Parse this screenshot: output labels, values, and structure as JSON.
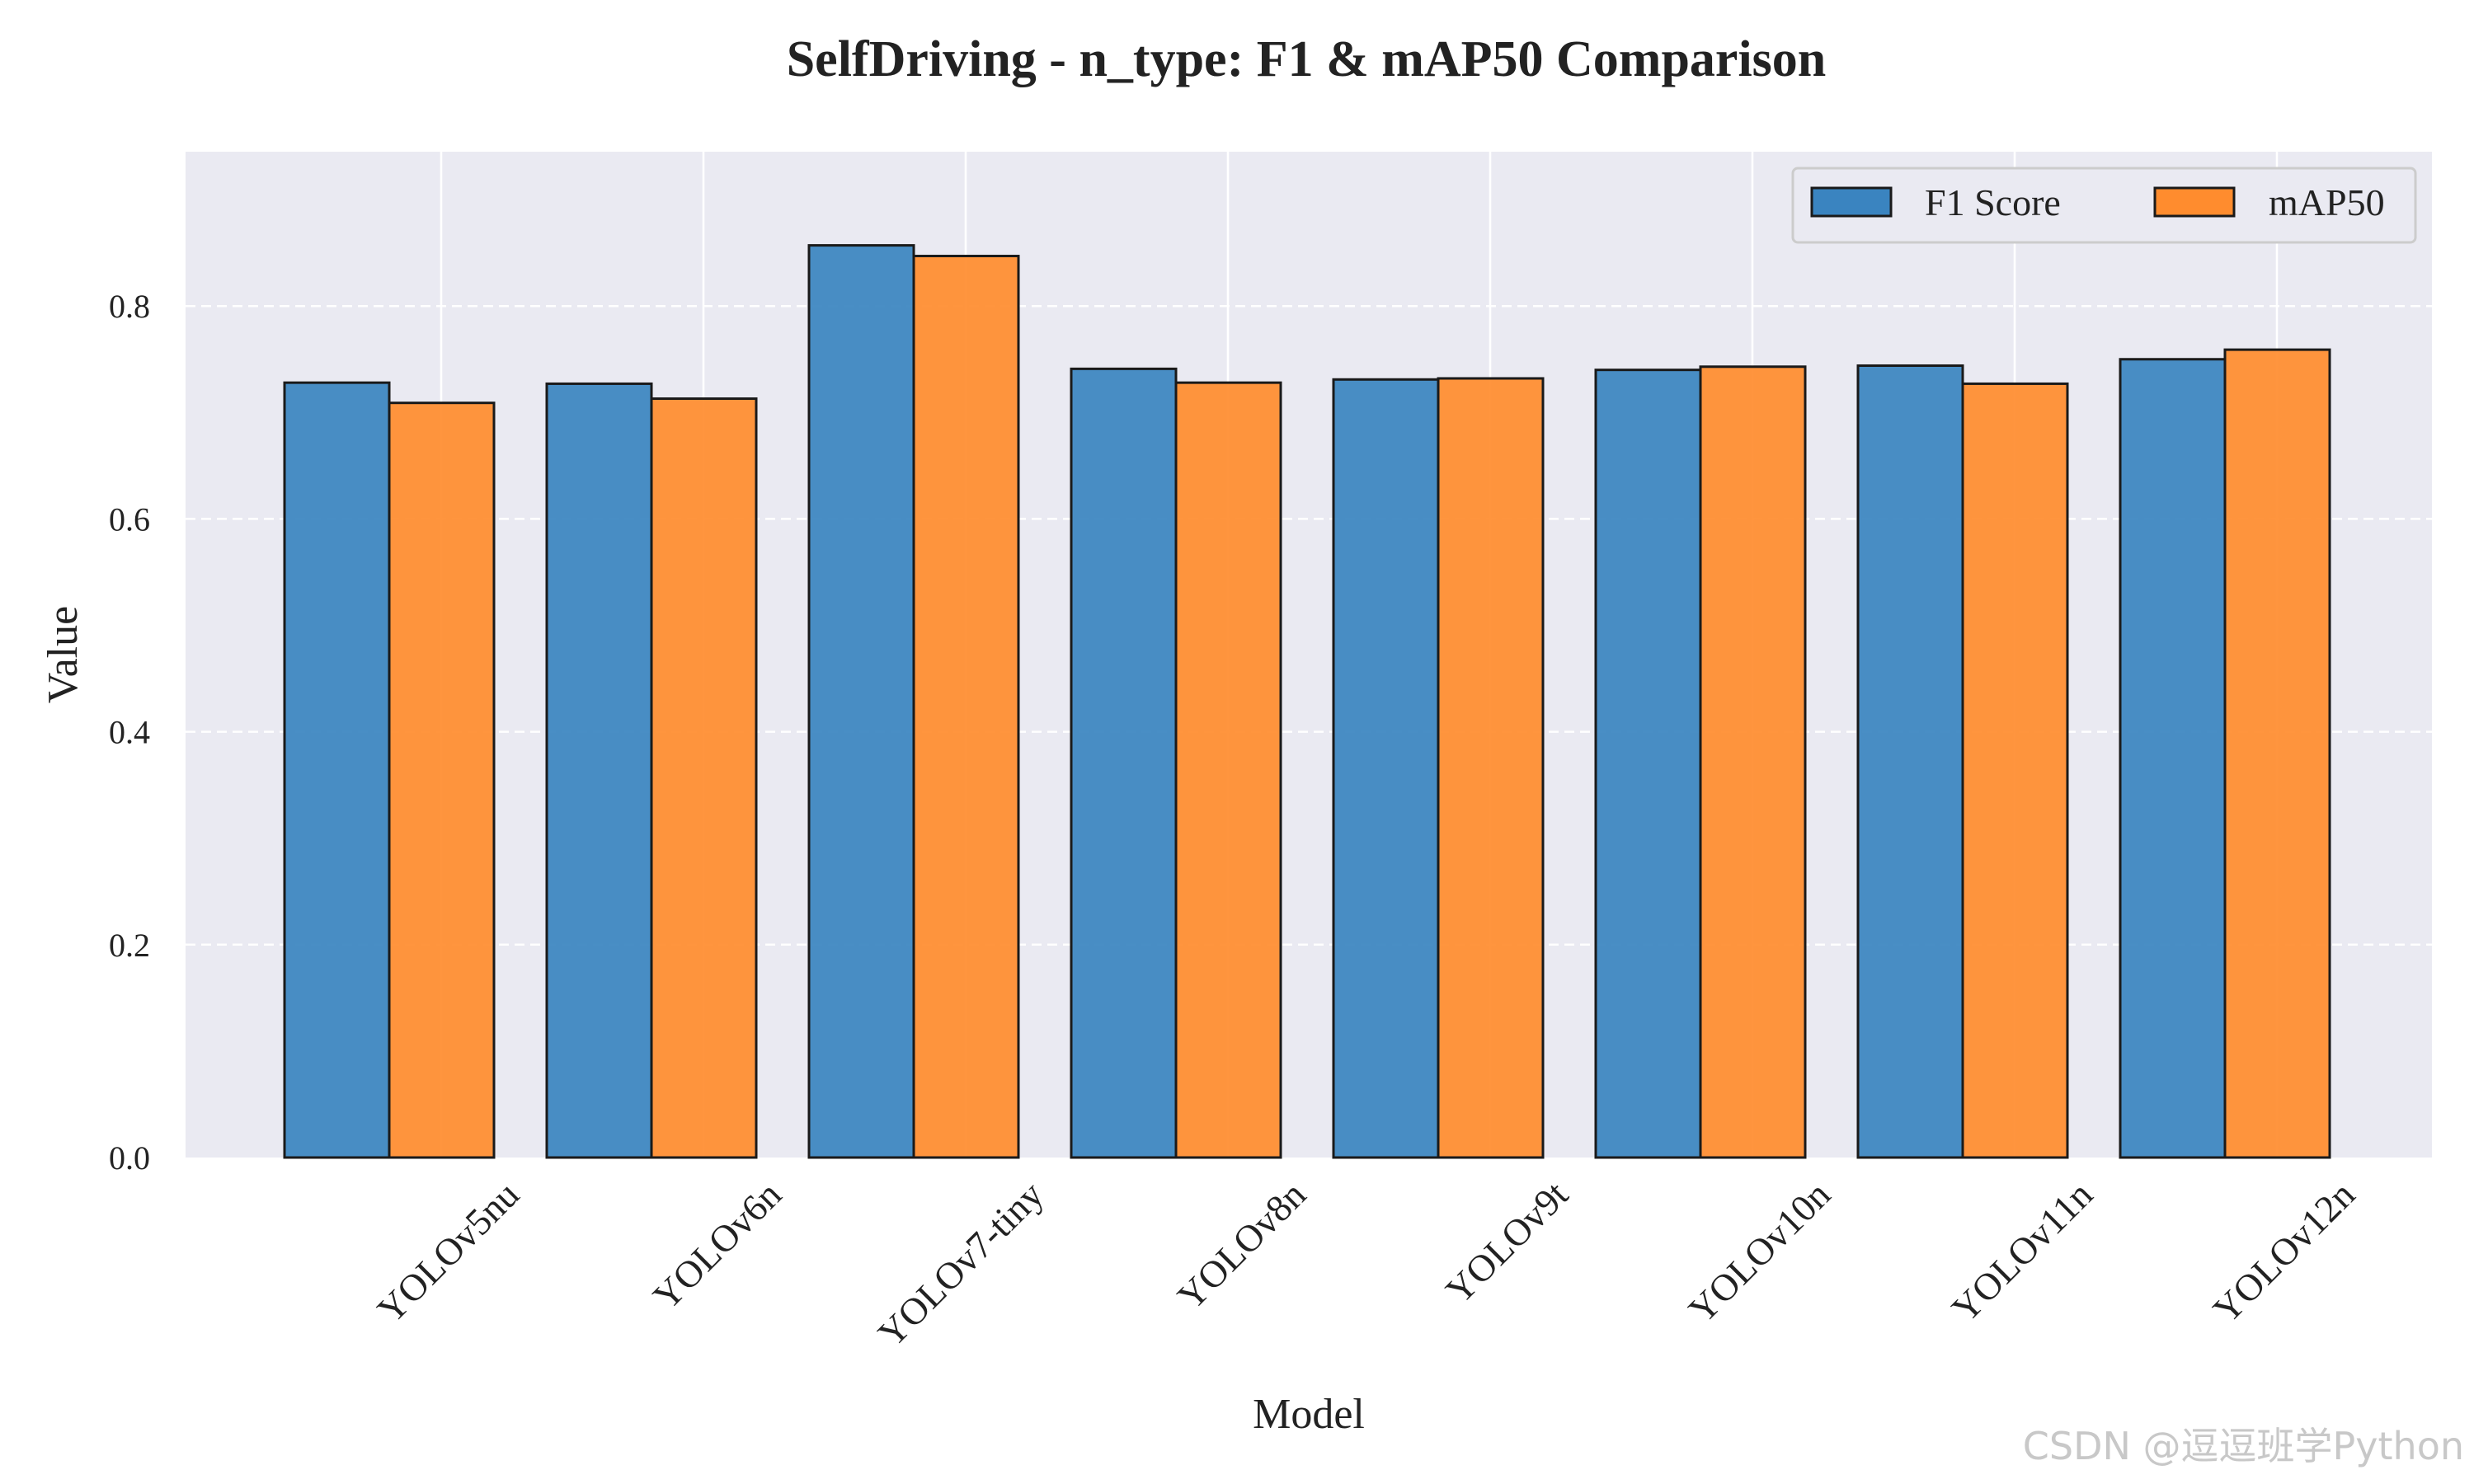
{
  "chart_data": {
    "type": "bar",
    "title": "SelfDriving - n_type: F1 & mAP50 Comparison",
    "xlabel": "Model",
    "ylabel": "Value",
    "ylim": [
      0,
      0.945
    ],
    "yticks": [
      0.0,
      0.2,
      0.4,
      0.6,
      0.8
    ],
    "ytick_labels": [
      "0.0",
      "0.2",
      "0.4",
      "0.6",
      "0.8"
    ],
    "grid": true,
    "legend_position": "top-right",
    "categories": [
      "YOLOv5nu",
      "YOLOv6n",
      "YOLOv7-tiny",
      "YOLOv8n",
      "YOLOv9t",
      "YOLOv10n",
      "YOLOv11n",
      "YOLOv12n"
    ],
    "series": [
      {
        "name": "F1 Score",
        "color": "#3a84c0",
        "values": [
          0.728,
          0.727,
          0.857,
          0.741,
          0.731,
          0.74,
          0.744,
          0.75
        ]
      },
      {
        "name": "mAP50",
        "color": "#ff8c2e",
        "values": [
          0.709,
          0.713,
          0.847,
          0.728,
          0.732,
          0.743,
          0.727,
          0.759
        ]
      }
    ]
  },
  "watermark": "CSDN @逗逗班学Python"
}
